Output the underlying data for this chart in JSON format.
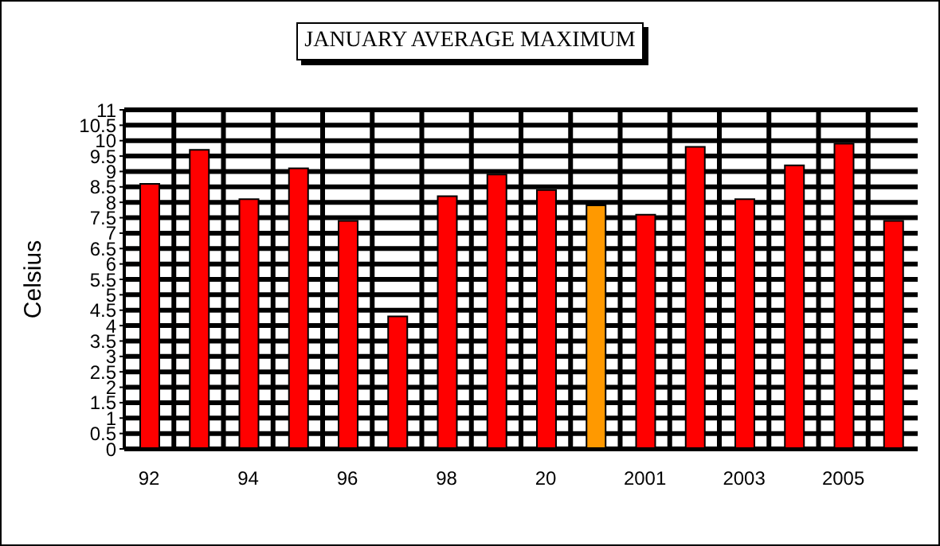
{
  "chart_data": {
    "type": "bar",
    "title": "JANUARY AVERAGE MAXIMUM",
    "ylabel": "Celsius",
    "categories": [
      "92",
      null,
      "94",
      null,
      "96",
      null,
      "98",
      null,
      "20",
      null,
      "2001",
      null,
      "2003",
      null,
      "2005",
      null
    ],
    "values": [
      8.6,
      9.7,
      8.1,
      9.1,
      7.4,
      4.3,
      8.2,
      8.9,
      8.4,
      7.9,
      7.6,
      9.8,
      8.1,
      9.2,
      9.9,
      7.4
    ],
    "colors": [
      "#ff0000",
      "#ff0000",
      "#ff0000",
      "#ff0000",
      "#ff0000",
      "#ff0000",
      "#ff0000",
      "#ff0000",
      "#ff0000",
      "#ff9900",
      "#ff0000",
      "#ff0000",
      "#ff0000",
      "#ff0000",
      "#ff0000",
      "#ff0000"
    ],
    "ylim": [
      0,
      11
    ],
    "yticks": [
      0,
      0.5,
      1,
      1.5,
      2,
      2.5,
      3,
      3.5,
      4,
      4.5,
      5,
      5.5,
      6,
      6.5,
      7,
      7.5,
      8,
      8.5,
      9,
      9.5,
      10,
      10.5,
      11
    ],
    "grid": true,
    "legend": false
  }
}
